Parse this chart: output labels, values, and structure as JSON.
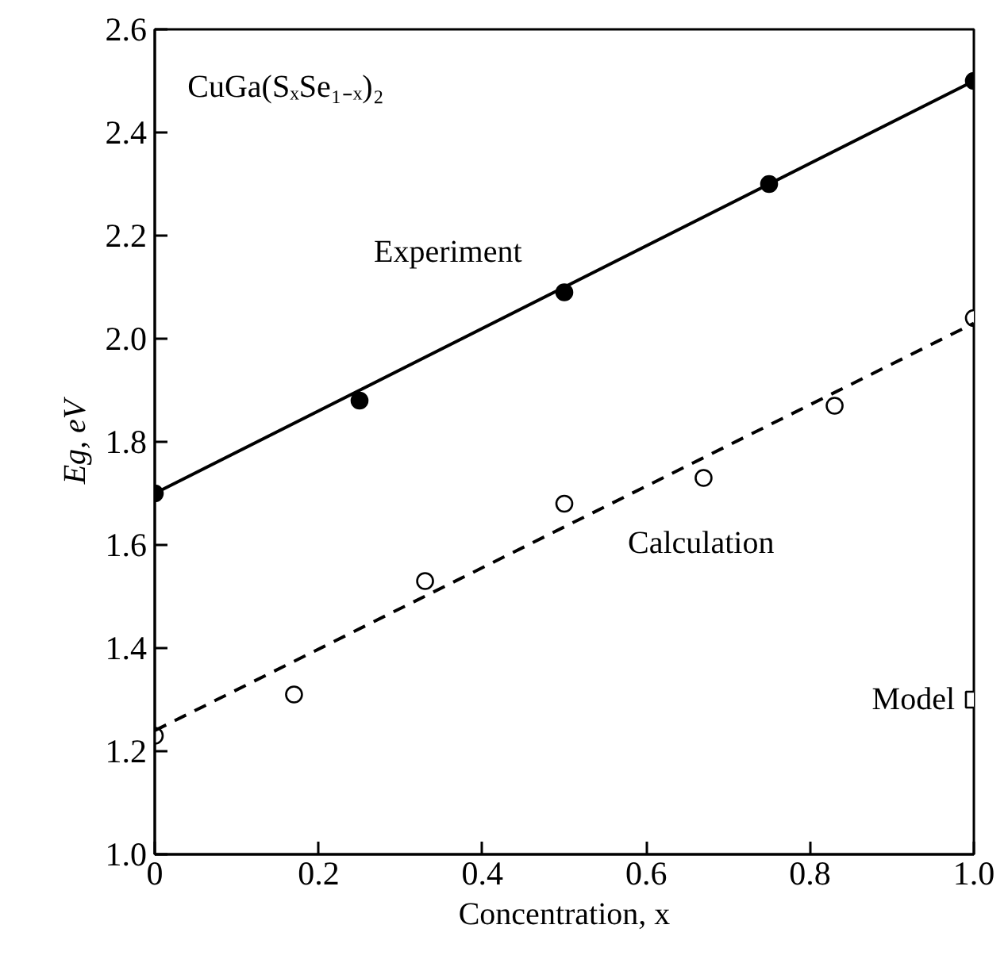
{
  "chart_data": {
    "type": "scatter",
    "title": "CuGa(SₓSe₁₋ₓ)₂",
    "xlabel": "Concentration, x",
    "ylabel": "Eg, eV",
    "xlim": [
      0,
      1
    ],
    "ylim": [
      1.0,
      2.6
    ],
    "xticks": [
      0,
      0.2,
      0.4,
      0.6,
      0.8,
      {
        "value": 1,
        "label": "1.0"
      }
    ],
    "yticks": [
      {
        "value": 1,
        "label": "1.0"
      },
      1.2,
      1.4,
      1.6,
      1.8,
      {
        "value": 2,
        "label": "2.0"
      },
      2.2,
      2.4,
      2.6
    ],
    "grid": false,
    "series": [
      {
        "name": "Experiment",
        "marker": "circle",
        "color": "#000000",
        "x": [
          0,
          0.25,
          0.5,
          0.75,
          1.0
        ],
        "values": [
          1.7,
          1.88,
          2.09,
          2.3,
          2.5
        ]
      },
      {
        "name": "Calculation",
        "marker": "circle",
        "color": "#ffffff",
        "x": [
          0,
          0.17,
          0.33,
          0.5,
          0.67,
          0.83,
          1.0
        ],
        "values": [
          1.23,
          1.31,
          1.53,
          1.68,
          1.73,
          1.87,
          2.04
        ]
      },
      {
        "name": "Model",
        "marker": "square",
        "color": "#ffffff",
        "x": [
          1.0
        ],
        "values": [
          1.3
        ]
      },
      {
        "type": "line",
        "marker": "none",
        "line_style": "solid",
        "color": "#000000",
        "x": [
          0,
          1.0
        ],
        "values": [
          1.7,
          2.5
        ]
      },
      {
        "type": "line",
        "marker": "none",
        "line_style": "dashed",
        "color": "#000000",
        "x": [
          0,
          1.0
        ],
        "values": [
          1.24,
          2.03
        ]
      }
    ]
  }
}
